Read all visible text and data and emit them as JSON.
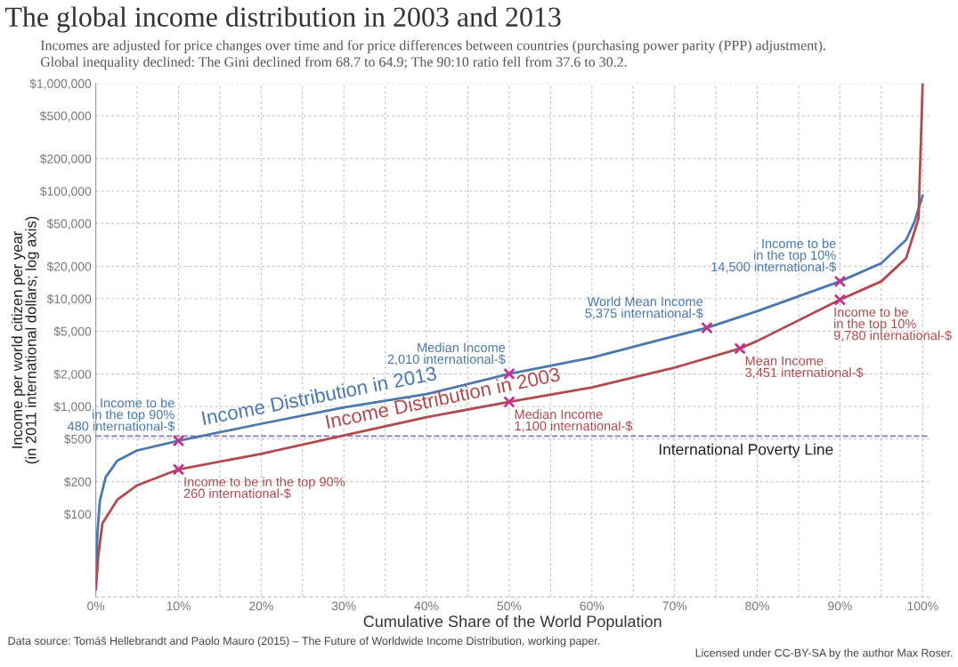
{
  "chart_data": {
    "type": "line",
    "title": "The global income distribution in 2003 and 2013",
    "subtitle": "Incomes are adjusted for price changes over time and for price differences between countries (purchasing power parity (PPP) adjustment).\nGlobal inequality declined: The Gini declined from 68.7 to 64.9; The 90:10 ratio fell from 37.6 to 30.2.",
    "xlabel": "Cumulative Share of the World Population",
    "ylabel": "Income per world citizen per year\n(in 2011 international dollars; log axis)",
    "log": true,
    "grid": true,
    "legend": false,
    "line_style": "solid",
    "marker": "none",
    "xlim": [
      0,
      100.8
    ],
    "ylim": [
      17,
      1000000
    ],
    "xticks": [
      {
        "value": 0,
        "label": "0%"
      },
      {
        "value": 5,
        "label": null
      },
      {
        "value": 10,
        "label": "10%"
      },
      {
        "value": 15,
        "label": null
      },
      {
        "value": 20,
        "label": "20%"
      },
      {
        "value": 25,
        "label": null
      },
      {
        "value": 30,
        "label": "30%"
      },
      {
        "value": 35,
        "label": null
      },
      {
        "value": 40,
        "label": "40%"
      },
      {
        "value": 45,
        "label": null
      },
      {
        "value": 50,
        "label": "50%"
      },
      {
        "value": 55,
        "label": null
      },
      {
        "value": 60,
        "label": "60%"
      },
      {
        "value": 65,
        "label": null
      },
      {
        "value": 70,
        "label": "70%"
      },
      {
        "value": 75,
        "label": null
      },
      {
        "value": 80,
        "label": "80%"
      },
      {
        "value": 85,
        "label": null
      },
      {
        "value": 90,
        "label": "90%"
      },
      {
        "value": 95,
        "label": null
      },
      {
        "value": 100,
        "label": "100%"
      }
    ],
    "yticks": [
      {
        "value": 100,
        "label": "$100"
      },
      {
        "value": 200,
        "label": "$200"
      },
      {
        "value": 500,
        "label": "$500"
      },
      {
        "value": 1000,
        "label": "$1,000"
      },
      {
        "value": 2000,
        "label": "$2,000"
      },
      {
        "value": 5000,
        "label": "$5,000"
      },
      {
        "value": 10000,
        "label": "$10,000"
      },
      {
        "value": 20000,
        "label": "$20,000"
      },
      {
        "value": 50000,
        "label": "$50,000"
      },
      {
        "value": 100000,
        "label": "$100,000"
      },
      {
        "value": 200000,
        "label": "$200,000"
      },
      {
        "value": 500000,
        "label": "$500,000"
      },
      {
        "value": 1000000,
        "label": "$1,000,000"
      }
    ],
    "series": [
      {
        "name": "Income Distribution in 2013",
        "color": "#4a78ad",
        "x": [
          0,
          0.2,
          0.5,
          1.2,
          2.6,
          5,
          10,
          20,
          30,
          40,
          50,
          60,
          70,
          73.9,
          80,
          90,
          95,
          98,
          99,
          100
        ],
        "values": [
          20,
          67,
          134,
          221,
          313,
          390,
          480,
          690,
          980,
          1300,
          2010,
          2840,
          4500,
          5375,
          7660,
          14500,
          21400,
          35200,
          51600,
          91000
        ]
      },
      {
        "name": "Income Distribution in 2003",
        "color": "#b04a4e",
        "x": [
          0,
          0.3,
          0.8,
          2.6,
          5,
          10,
          20,
          30,
          40,
          50,
          60,
          70,
          77.9,
          80,
          90,
          95,
          98,
          99.5,
          100
        ],
        "values": [
          20,
          41,
          82,
          136,
          185,
          260,
          363,
          537,
          795,
          1100,
          1500,
          2290,
          3451,
          4055,
          9780,
          14500,
          23800,
          55600,
          1000000
        ]
      },
      {
        "type": "scatter",
        "marker": "cross",
        "color": "#c2328f",
        "x": [
          10,
          50,
          73.9,
          90,
          10,
          50,
          77.9,
          90
        ],
        "values": [
          480,
          2010,
          5375,
          14500,
          260,
          1100,
          3451,
          9780
        ]
      }
    ],
    "ref_lines": [
      {
        "axis": "y",
        "value": 530,
        "label": "International Poverty Line",
        "color": "#8a74c4",
        "line_style": "dashed"
      }
    ],
    "annotations": [
      {
        "text": "Income to be\nin the top 90%\n480 international-$",
        "x": 10,
        "y": 480
      },
      {
        "text": "Median Income\n2,010 international-$",
        "x": 50,
        "y": 2010
      },
      {
        "text": "World Mean Income\n5,375 international-$",
        "x": 73.9,
        "y": 5375
      },
      {
        "text": "Income to be\nin the top 10%\n14,500 international-$",
        "x": 90,
        "y": 14500
      },
      {
        "text": "Income to be in the top 90%\n260 international-$",
        "x": 10,
        "y": 260
      },
      {
        "text": "Median Income\n1,100 international-$",
        "x": 50,
        "y": 1100
      },
      {
        "text": "Mean Income\n3,451 international-$",
        "x": 77.9,
        "y": 3451
      },
      {
        "text": "Income to be\nin the top 10%\n9,780 international-$",
        "x": 90,
        "y": 9780
      },
      "Data source: Tomáš Hellebrandt and Paolo Mauro (2015) – The Future of Worldwide Income Distribution, working paper.",
      "Licensed under CC-BY-SA by the author Max Roser."
    ]
  }
}
